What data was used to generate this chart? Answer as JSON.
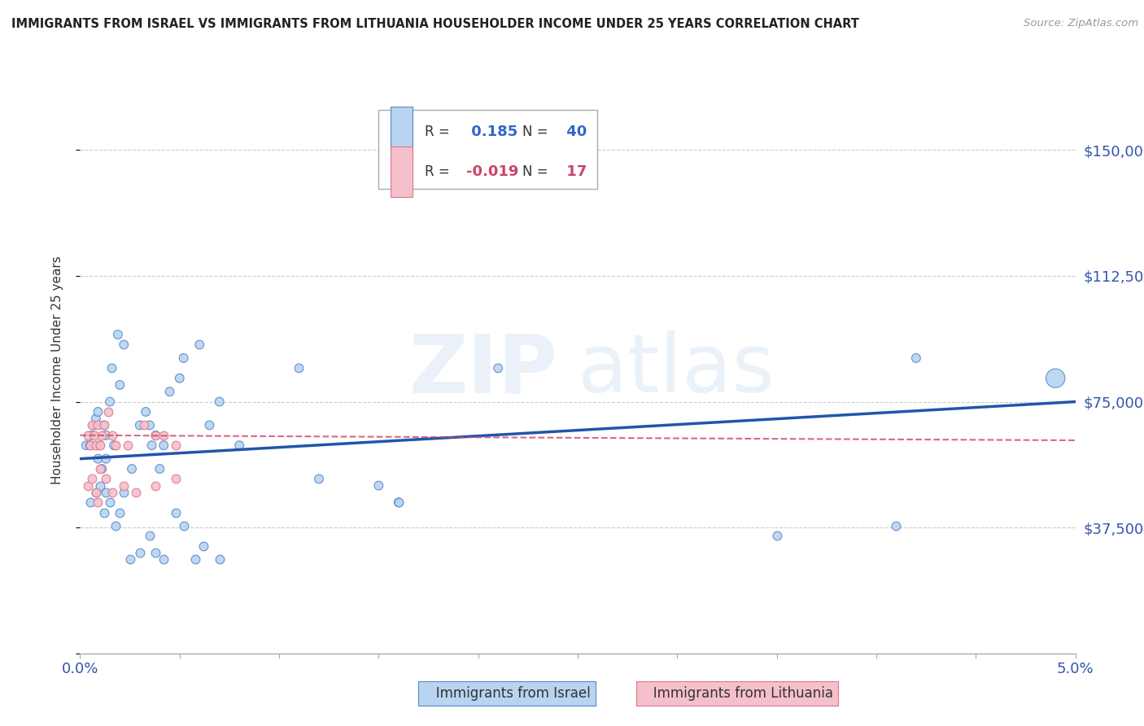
{
  "title": "IMMIGRANTS FROM ISRAEL VS IMMIGRANTS FROM LITHUANIA HOUSEHOLDER INCOME UNDER 25 YEARS CORRELATION CHART",
  "source": "Source: ZipAtlas.com",
  "ylabel": "Householder Income Under 25 years",
  "xlim": [
    0.0,
    0.05
  ],
  "ylim": [
    0,
    168750
  ],
  "yticks": [
    0,
    37500,
    75000,
    112500,
    150000
  ],
  "ytick_labels": [
    "",
    "$37,500",
    "$75,000",
    "$112,500",
    "$150,000"
  ],
  "israel_color": "#b8d4f0",
  "israel_edge_color": "#5588cc",
  "israel_line_color": "#2255aa",
  "lithuania_color": "#f5c0cc",
  "lithuania_edge_color": "#dd7788",
  "lithuania_line_color": "#cc4466",
  "R_israel": 0.185,
  "N_israel": 40,
  "R_lithuania": -0.019,
  "N_lithuania": 17,
  "watermark": "ZIPatlas",
  "israel_x": [
    0.0003,
    0.0005,
    0.0006,
    0.0007,
    0.0008,
    0.0009,
    0.0009,
    0.001,
    0.0011,
    0.0012,
    0.0013,
    0.0013,
    0.0015,
    0.0016,
    0.0017,
    0.0019,
    0.002,
    0.0022,
    0.0026,
    0.003,
    0.0033,
    0.0035,
    0.0036,
    0.0038,
    0.004,
    0.0042,
    0.0045,
    0.005,
    0.0052,
    0.006,
    0.0065,
    0.007,
    0.008,
    0.011,
    0.012,
    0.015,
    0.016,
    0.021,
    0.042,
    0.049
  ],
  "israel_y": [
    62000,
    62000,
    65000,
    68000,
    70000,
    58000,
    72000,
    62000,
    55000,
    68000,
    65000,
    58000,
    75000,
    85000,
    62000,
    95000,
    80000,
    92000,
    55000,
    68000,
    72000,
    68000,
    62000,
    65000,
    55000,
    62000,
    78000,
    82000,
    88000,
    92000,
    68000,
    75000,
    62000,
    85000,
    52000,
    50000,
    45000,
    85000,
    88000,
    82000
  ],
  "israel_sizes": [
    60,
    60,
    60,
    60,
    60,
    60,
    60,
    60,
    60,
    60,
    60,
    60,
    60,
    60,
    60,
    60,
    60,
    60,
    60,
    60,
    60,
    60,
    60,
    60,
    60,
    60,
    60,
    60,
    60,
    60,
    60,
    60,
    60,
    60,
    60,
    60,
    60,
    60,
    60,
    280
  ],
  "israel_x_low": [
    0.0005,
    0.0008,
    0.001,
    0.0012,
    0.0013,
    0.0015,
    0.0018,
    0.002,
    0.0022,
    0.0025,
    0.003,
    0.0035,
    0.0038,
    0.0042,
    0.0048,
    0.0052,
    0.0058,
    0.0062,
    0.007,
    0.016,
    0.035,
    0.041
  ],
  "israel_y_low": [
    45000,
    48000,
    50000,
    42000,
    48000,
    45000,
    38000,
    42000,
    48000,
    28000,
    30000,
    35000,
    30000,
    28000,
    42000,
    38000,
    28000,
    32000,
    28000,
    45000,
    35000,
    38000
  ],
  "lithuania_x": [
    0.0004,
    0.0005,
    0.0006,
    0.0007,
    0.0008,
    0.0009,
    0.001,
    0.0011,
    0.0012,
    0.0014,
    0.0016,
    0.0018,
    0.0024,
    0.0032,
    0.0038,
    0.0042,
    0.0048
  ],
  "lithuania_y": [
    65000,
    62000,
    68000,
    65000,
    62000,
    68000,
    62000,
    65000,
    68000,
    72000,
    65000,
    62000,
    62000,
    68000,
    65000,
    65000,
    62000
  ],
  "lithuania_x_low": [
    0.0004,
    0.0006,
    0.0008,
    0.0009,
    0.001,
    0.0013,
    0.0016,
    0.0022,
    0.0028,
    0.0038,
    0.0048
  ],
  "lithuania_y_low": [
    50000,
    52000,
    48000,
    45000,
    55000,
    52000,
    48000,
    50000,
    48000,
    50000,
    52000
  ],
  "trendline_israel_y0": 58000,
  "trendline_israel_y1": 75000,
  "trendline_lith_y0": 65000,
  "trendline_lith_y1": 63500
}
